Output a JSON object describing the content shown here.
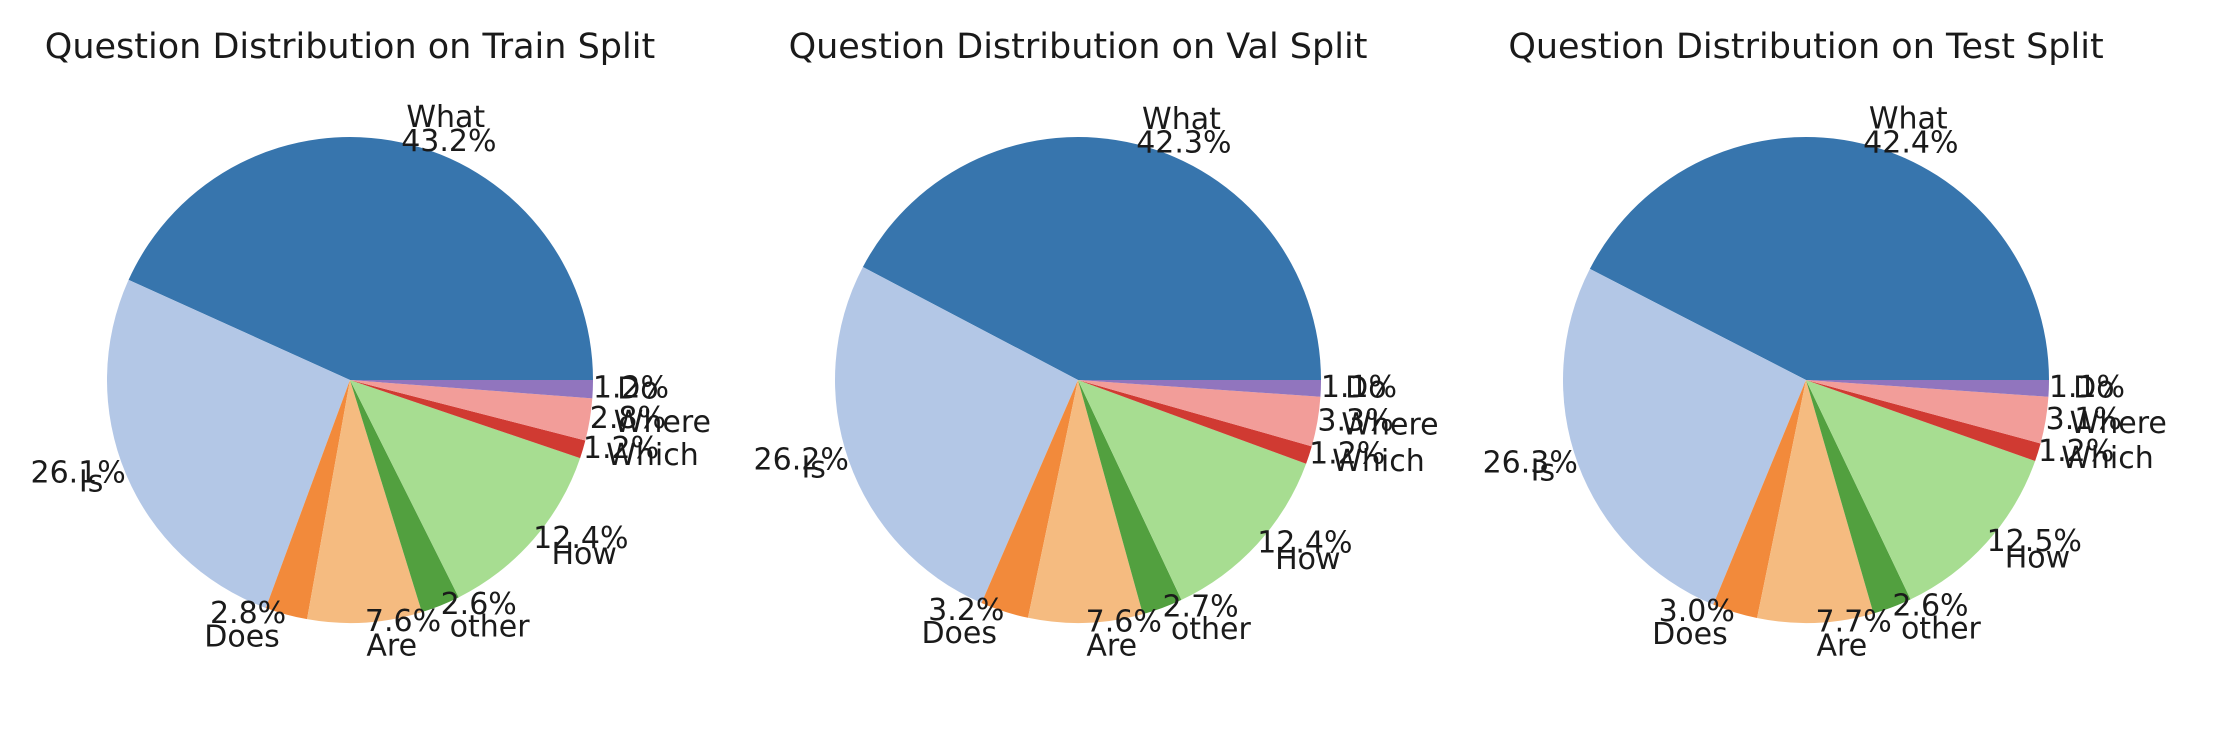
{
  "chart_data": [
    {
      "type": "pie",
      "title": "Question Distribution on Train Split",
      "labels": [
        "What",
        "Is",
        "Does",
        "Are",
        "other",
        "How",
        "Which",
        "Where",
        "Do"
      ],
      "values": [
        43.2,
        26.1,
        2.8,
        7.6,
        2.6,
        12.4,
        1.2,
        2.8,
        1.2
      ],
      "value_labels": [
        "43.2%",
        "26.1%",
        "2.8%",
        "7.6%",
        "2.6%",
        "12.4%",
        "1.2%",
        "2.8%",
        "1.2%"
      ]
    },
    {
      "type": "pie",
      "title": "Question Distribution on Val Split",
      "labels": [
        "What",
        "Is",
        "Does",
        "Are",
        "other",
        "How",
        "Which",
        "Where",
        "Do"
      ],
      "values": [
        42.3,
        26.2,
        3.2,
        7.6,
        2.7,
        12.4,
        1.2,
        3.3,
        1.1
      ],
      "value_labels": [
        "42.3%",
        "26.2%",
        "3.2%",
        "7.6%",
        "2.7%",
        "12.4%",
        "1.2%",
        "3.3%",
        "1.1%"
      ]
    },
    {
      "type": "pie",
      "title": "Question Distribution on Test Split",
      "labels": [
        "What",
        "Is",
        "Does",
        "Are",
        "other",
        "How",
        "Which",
        "Where",
        "Do"
      ],
      "values": [
        42.4,
        26.3,
        3.0,
        7.7,
        2.6,
        12.5,
        1.2,
        3.1,
        1.1
      ],
      "value_labels": [
        "42.4%",
        "26.3%",
        "3.0%",
        "7.7%",
        "2.6%",
        "12.5%",
        "1.2%",
        "3.1%",
        "1.1%"
      ]
    }
  ],
  "colors": {
    "What": "#3775ad",
    "Is": "#b3c7e6",
    "Does": "#f28a3b",
    "Are": "#f5bb80",
    "other": "#52a03f",
    "How": "#a7dd91",
    "Which": "#d03a32",
    "Where": "#f29d99",
    "Do": "#9175be"
  }
}
